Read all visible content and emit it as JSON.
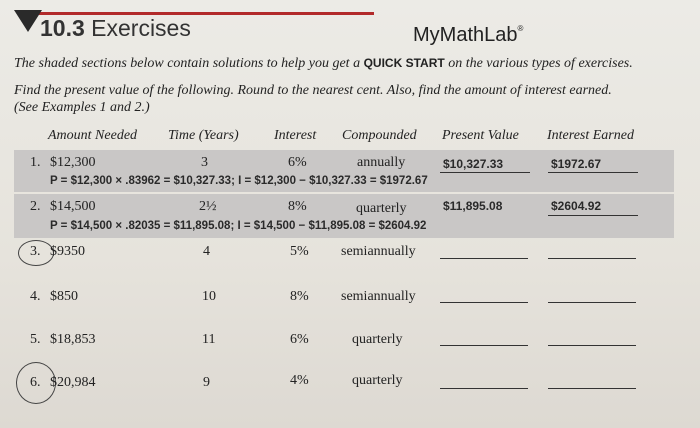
{
  "header": {
    "section_number": "10.3",
    "section_title": "Exercises",
    "brand": "MyMathLab",
    "brand_mark": "®"
  },
  "intro": {
    "before": "The shaded sections below contain solutions to help you get a",
    "quick_start": "QUICK START",
    "after": "on the various types of exercises."
  },
  "instructions": {
    "line1": "Find the present value of the following. Round to the nearest cent. Also, find the amount of interest earned.",
    "line2": "(See Examples 1 and 2.)"
  },
  "columns": {
    "amount": "Amount Needed",
    "time": "Time (Years)",
    "interest": "Interest",
    "compounded": "Compounded",
    "present_value": "Present Value",
    "interest_earned": "Interest Earned"
  },
  "rows": [
    {
      "number": "1.",
      "amount": "$12,300",
      "time": "3",
      "interest": "6%",
      "compounded": "annually",
      "present_value": "$10,327.33",
      "interest_earned": "$1972.67",
      "solution": "P = $12,300 × .83962 = $10,327.33; I = $12,300 − $10,327.33 = $1972.67"
    },
    {
      "number": "2.",
      "amount": "$14,500",
      "time": "2½",
      "interest": "8%",
      "compounded": "quarterly",
      "present_value": "$11,895.08",
      "interest_earned": "$2604.92",
      "solution": "P = $14,500 × .82035 = $11,895.08; I = $14,500 − $11,895.08 = $2604.92"
    },
    {
      "number": "3.",
      "amount": "$9350",
      "time": "4",
      "interest": "5%",
      "compounded": "semiannually",
      "present_value": "",
      "interest_earned": ""
    },
    {
      "number": "4.",
      "amount": "$850",
      "time": "10",
      "interest": "8%",
      "compounded": "semiannually",
      "present_value": "",
      "interest_earned": ""
    },
    {
      "number": "5.",
      "amount": "$18,853",
      "time": "11",
      "interest": "6%",
      "compounded": "quarterly",
      "present_value": "",
      "interest_earned": ""
    },
    {
      "number": "6.",
      "amount": "$20,984",
      "time": "9",
      "interest": "4%",
      "compounded": "quarterly",
      "present_value": "",
      "interest_earned": ""
    }
  ]
}
